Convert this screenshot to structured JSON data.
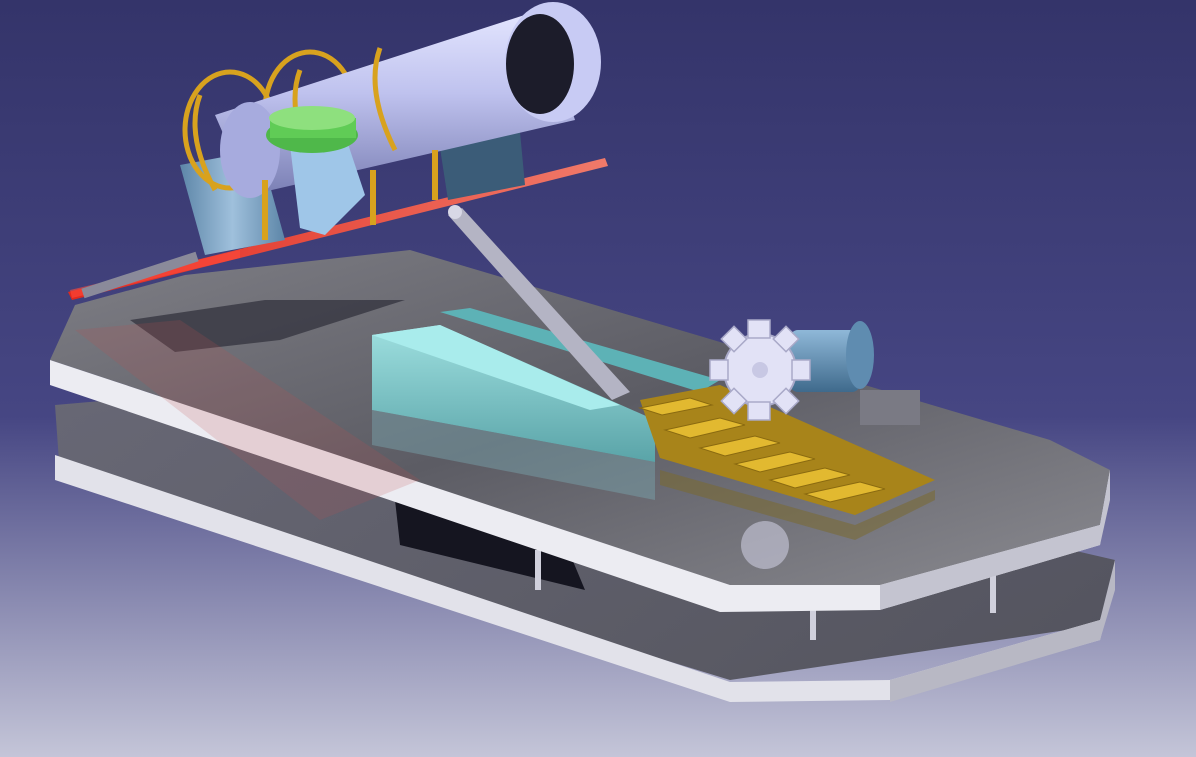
{
  "scene": {
    "description_hidden": "",
    "background": {
      "top": "#34346a",
      "mid": "#4a4a86",
      "bottom": "#c4c5d8"
    },
    "colors": {
      "plate": "#8d8d93",
      "plate_edge": "#e6e6ec",
      "tube": "#c3c6ee",
      "tube_dark": "#7d82b6",
      "gold": "#d8a21e",
      "red_plate": "#d8201e",
      "green_cap": "#5fbf55",
      "blue_block": "#7fa3c2",
      "teal_slide": "#79c6c8",
      "rack": "#c8a020",
      "gear": "#dcdcf2",
      "motor": "#6a97b8"
    },
    "icons": [
      "laser-tube",
      "tilt-plate",
      "linkage-rod",
      "slide-block",
      "gear-rack",
      "pinion-gear",
      "motor",
      "base-plate"
    ]
  }
}
